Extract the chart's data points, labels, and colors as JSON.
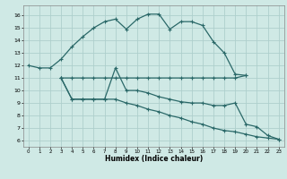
{
  "xlabel": "Humidex (Indice chaleur)",
  "xlim": [
    -0.5,
    23.5
  ],
  "ylim": [
    5.5,
    16.8
  ],
  "xticks": [
    0,
    1,
    2,
    3,
    4,
    5,
    6,
    7,
    8,
    9,
    10,
    11,
    12,
    13,
    14,
    15,
    16,
    17,
    18,
    19,
    20,
    21,
    22,
    23
  ],
  "yticks": [
    6,
    7,
    8,
    9,
    10,
    11,
    12,
    13,
    14,
    15,
    16
  ],
  "bg_color": "#cfe9e5",
  "line_color": "#2a6868",
  "grid_color": "#aecfcc",
  "line1_x": [
    0,
    1,
    2,
    3,
    4,
    5,
    6,
    7,
    8,
    9,
    10,
    11,
    12,
    13,
    14,
    15,
    16,
    17,
    18,
    19,
    20
  ],
  "line1_y": [
    12.0,
    11.8,
    11.8,
    12.5,
    13.5,
    14.3,
    15.0,
    15.5,
    15.7,
    14.9,
    15.7,
    16.1,
    16.1,
    14.9,
    15.5,
    15.5,
    15.2,
    13.9,
    13.0,
    11.3,
    11.2
  ],
  "line2_x": [
    3,
    4,
    5,
    6,
    7,
    8,
    9,
    10,
    11,
    12,
    13,
    14,
    15,
    16,
    17,
    18,
    19,
    20
  ],
  "line2_y": [
    11.0,
    11.0,
    11.0,
    11.0,
    11.0,
    11.0,
    11.0,
    11.0,
    11.0,
    11.0,
    11.0,
    11.0,
    11.0,
    11.0,
    11.0,
    11.0,
    11.0,
    11.2
  ],
  "line3_x": [
    3,
    4,
    5,
    6,
    7,
    8,
    9,
    10,
    11,
    12,
    13,
    14,
    15,
    16,
    17,
    18,
    19,
    20,
    21,
    22,
    23
  ],
  "line3_y": [
    11.0,
    9.3,
    9.3,
    9.3,
    9.3,
    11.8,
    10.0,
    10.0,
    9.8,
    9.5,
    9.3,
    9.1,
    9.0,
    9.0,
    8.8,
    8.8,
    9.0,
    7.3,
    7.1,
    6.4,
    6.1
  ],
  "line4_x": [
    3,
    4,
    5,
    6,
    7,
    8,
    9,
    10,
    11,
    12,
    13,
    14,
    15,
    16,
    17,
    18,
    19,
    20,
    21,
    22,
    23
  ],
  "line4_y": [
    11.0,
    9.3,
    9.3,
    9.3,
    9.3,
    9.3,
    9.0,
    8.8,
    8.5,
    8.3,
    8.0,
    7.8,
    7.5,
    7.3,
    7.0,
    6.8,
    6.7,
    6.5,
    6.3,
    6.2,
    6.1
  ]
}
